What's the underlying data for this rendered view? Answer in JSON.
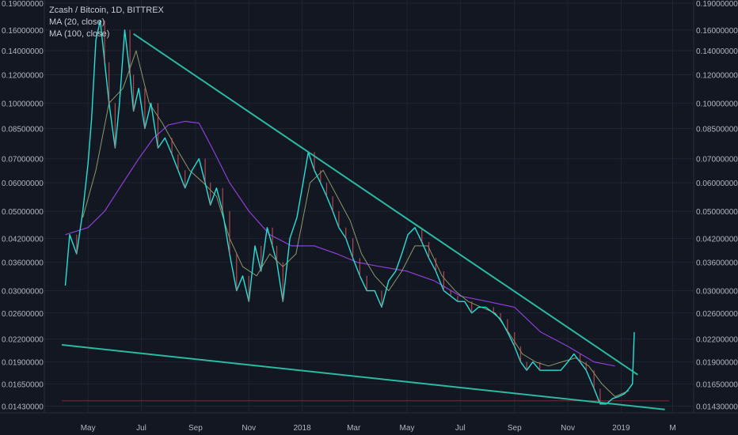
{
  "legend": {
    "title": "Zcash / Bitcoin, 1D, BITTREX",
    "ma1": "MA (20, close)",
    "ma2": "MA (100, close)"
  },
  "colors": {
    "background": "#131722",
    "grid": "#1f2433",
    "axis_text": "#b2b5be",
    "price_line": "#26e0d8",
    "candle_down": "#e0595b",
    "ma20": "#8c9968",
    "ma100": "#8e3fd6",
    "trendline": "#2bb9a2",
    "support_level": "#7a2a2a"
  },
  "chart_data": {
    "type": "line",
    "scale": "log",
    "title": "Zcash / Bitcoin, 1D, BITTREX",
    "x_ticks": [
      "May",
      "Jul",
      "Sep",
      "Nov",
      "2018",
      "Mar",
      "May",
      "Jul",
      "Sep",
      "Nov",
      "2019",
      "M"
    ],
    "y_ticks": [
      "0.19000000",
      "0.16000000",
      "0.14000000",
      "0.12000000",
      "0.10000000",
      "0.08500000",
      "0.07000000",
      "0.06000000",
      "0.05000000",
      "0.04200000",
      "0.03600000",
      "0.03000000",
      "0.02600000",
      "0.02200000",
      "0.01900000",
      "0.01650000",
      "0.01430000"
    ],
    "ylim": [
      0.0137,
      0.19
    ],
    "grid": true,
    "series": [
      {
        "name": "Zcash / Bitcoin",
        "x": [
          "2017-04-05",
          "2017-04-10",
          "2017-04-18",
          "2017-04-25",
          "2017-05-01",
          "2017-05-05",
          "2017-05-10",
          "2017-05-15",
          "2017-05-20",
          "2017-05-25",
          "2017-06-01",
          "2017-06-06",
          "2017-06-12",
          "2017-06-18",
          "2017-06-22",
          "2017-06-28",
          "2017-07-05",
          "2017-07-12",
          "2017-07-20",
          "2017-07-28",
          "2017-08-05",
          "2017-08-12",
          "2017-08-20",
          "2017-08-28",
          "2017-09-05",
          "2017-09-12",
          "2017-09-18",
          "2017-09-25",
          "2017-10-02",
          "2017-10-10",
          "2017-10-18",
          "2017-10-25",
          "2017-11-01",
          "2017-11-08",
          "2017-11-15",
          "2017-11-22",
          "2017-11-28",
          "2017-12-03",
          "2017-12-10",
          "2017-12-18",
          "2017-12-26",
          "2018-01-02",
          "2018-01-08",
          "2018-01-15",
          "2018-01-22",
          "2018-01-29",
          "2018-02-05",
          "2018-02-12",
          "2018-02-20",
          "2018-02-28",
          "2018-03-08",
          "2018-03-16",
          "2018-03-25",
          "2018-04-02",
          "2018-04-10",
          "2018-04-18",
          "2018-04-25",
          "2018-05-02",
          "2018-05-10",
          "2018-05-18",
          "2018-05-26",
          "2018-06-03",
          "2018-06-12",
          "2018-06-20",
          "2018-06-28",
          "2018-07-06",
          "2018-07-14",
          "2018-07-22",
          "2018-07-30",
          "2018-08-08",
          "2018-08-16",
          "2018-08-24",
          "2018-09-01",
          "2018-09-08",
          "2018-09-15",
          "2018-09-22",
          "2018-09-30",
          "2018-10-08",
          "2018-10-16",
          "2018-10-24",
          "2018-11-01",
          "2018-11-08",
          "2018-11-15",
          "2018-11-22",
          "2018-12-01",
          "2018-12-08",
          "2018-12-15",
          "2018-12-22",
          "2018-12-29",
          "2019-01-05",
          "2019-01-10",
          "2019-01-14",
          "2019-01-16"
        ],
        "values": [
          0.031,
          0.043,
          0.038,
          0.05,
          0.068,
          0.09,
          0.15,
          0.17,
          0.13,
          0.1,
          0.075,
          0.1,
          0.16,
          0.12,
          0.095,
          0.11,
          0.085,
          0.1,
          0.075,
          0.08,
          0.072,
          0.065,
          0.058,
          0.065,
          0.07,
          0.06,
          0.052,
          0.058,
          0.05,
          0.038,
          0.03,
          0.033,
          0.028,
          0.04,
          0.034,
          0.045,
          0.04,
          0.036,
          0.028,
          0.042,
          0.048,
          0.06,
          0.073,
          0.065,
          0.06,
          0.055,
          0.05,
          0.045,
          0.042,
          0.037,
          0.033,
          0.03,
          0.03,
          0.027,
          0.032,
          0.034,
          0.038,
          0.043,
          0.045,
          0.041,
          0.037,
          0.034,
          0.03,
          0.029,
          0.028,
          0.028,
          0.026,
          0.027,
          0.027,
          0.026,
          0.025,
          0.023,
          0.021,
          0.019,
          0.018,
          0.019,
          0.018,
          0.018,
          0.018,
          0.018,
          0.019,
          0.02,
          0.019,
          0.018,
          0.016,
          0.0145,
          0.0145,
          0.015,
          0.0152,
          0.0155,
          0.016,
          0.0165,
          0.023
        ]
      },
      {
        "name": "MA (20, close)",
        "x": [
          "2017-04-25",
          "2017-05-10",
          "2017-05-25",
          "2017-06-10",
          "2017-06-25",
          "2017-07-10",
          "2017-07-25",
          "2017-08-10",
          "2017-08-25",
          "2017-09-10",
          "2017-09-25",
          "2017-10-10",
          "2017-10-25",
          "2017-11-10",
          "2017-11-25",
          "2017-12-10",
          "2017-12-25",
          "2018-01-10",
          "2018-01-25",
          "2018-02-10",
          "2018-02-25",
          "2018-03-10",
          "2018-03-25",
          "2018-04-10",
          "2018-04-25",
          "2018-05-10",
          "2018-05-25",
          "2018-06-10",
          "2018-06-25",
          "2018-07-10",
          "2018-07-25",
          "2018-08-10",
          "2018-08-25",
          "2018-09-10",
          "2018-09-25",
          "2018-10-10",
          "2018-10-25",
          "2018-11-10",
          "2018-11-25",
          "2018-12-10",
          "2018-12-25",
          "2019-01-10"
        ],
        "values": [
          0.048,
          0.065,
          0.1,
          0.11,
          0.14,
          0.1,
          0.088,
          0.075,
          0.065,
          0.06,
          0.055,
          0.042,
          0.035,
          0.033,
          0.038,
          0.035,
          0.038,
          0.06,
          0.065,
          0.055,
          0.047,
          0.038,
          0.033,
          0.03,
          0.034,
          0.04,
          0.04,
          0.033,
          0.03,
          0.028,
          0.027,
          0.026,
          0.023,
          0.02,
          0.019,
          0.0185,
          0.019,
          0.0195,
          0.0185,
          0.0165,
          0.0152,
          0.0158
        ]
      },
      {
        "name": "MA (100, close)",
        "x": [
          "2017-04-05",
          "2017-05-01",
          "2017-05-20",
          "2017-06-10",
          "2017-06-28",
          "2017-07-15",
          "2017-08-01",
          "2017-08-20",
          "2017-09-05",
          "2017-09-20",
          "2017-10-10",
          "2017-11-01",
          "2017-11-25",
          "2017-12-20",
          "2018-01-15",
          "2018-02-10",
          "2018-03-05",
          "2018-04-01",
          "2018-05-01",
          "2018-06-01",
          "2018-07-01",
          "2018-08-01",
          "2018-09-01",
          "2018-10-01",
          "2018-11-01",
          "2018-12-01",
          "2018-12-25"
        ],
        "values": [
          0.043,
          0.045,
          0.05,
          0.06,
          0.07,
          0.08,
          0.087,
          0.089,
          0.088,
          0.075,
          0.06,
          0.05,
          0.043,
          0.04,
          0.04,
          0.038,
          0.036,
          0.035,
          0.034,
          0.032,
          0.029,
          0.028,
          0.027,
          0.023,
          0.021,
          0.019,
          0.0185
        ]
      },
      {
        "name": "",
        "role": "upper-trendline",
        "x": [
          "2017-06-22",
          "2019-01-20"
        ],
        "values": [
          0.156,
          0.0175
        ]
      },
      {
        "name": "",
        "role": "lower-trendline",
        "x": [
          "2017-04-01",
          "2019-02-20"
        ],
        "values": [
          0.0212,
          0.014
        ]
      },
      {
        "name": "",
        "role": "horizontal-level",
        "x": [
          "2017-04-01",
          "2019-02-25"
        ],
        "values": [
          0.0148,
          0.0148
        ]
      }
    ]
  }
}
